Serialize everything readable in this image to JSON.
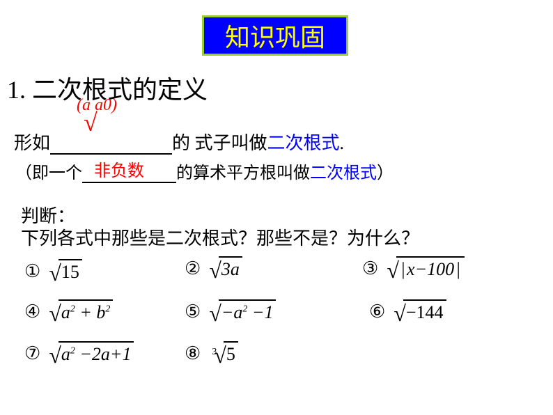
{
  "title": "知识巩固",
  "heading": "1. 二次根式的定义",
  "annotation": "(a   a0)",
  "line1_prefix": "形如",
  "line1_suffix": "的 式子叫做",
  "line1_keyword": "二次根式",
  "line1_end": ".",
  "line2_prefix": "（即一个",
  "line2_fill": "非负数",
  "line2_suffix": "的算术平方根叫做",
  "line2_keyword": "二次根式",
  "line2_end": "）",
  "judge_title": "判断：",
  "judge_question": "下列各式中那些是二次根式？那些不是？为什么？",
  "items": {
    "n1": "①",
    "n2": "②",
    "n3": "③",
    "n4": "④",
    "n5": "⑤",
    "n6": "⑥",
    "n7": "⑦",
    "n8": "⑧",
    "v1": "15",
    "v2": "3a",
    "v3_inner": "x−100",
    "v4_a": "a",
    "v4_plus": " + ",
    "v4_b": "b",
    "v5_prefix": "−a",
    "v5_suffix": " −1",
    "v6": "−144",
    "v7_prefix": "a",
    "v7_mid": " −2a+",
    "v7_end": "1",
    "v8": "5",
    "cube_index": "3",
    "exp2": "2"
  },
  "colors": {
    "title_bg": "#0000ff",
    "title_border": "#9acd32",
    "title_text": "#ffff00",
    "text": "#000000",
    "keyword": "#0000ff",
    "annotation": "#ff0000",
    "background": "#ffffff"
  }
}
